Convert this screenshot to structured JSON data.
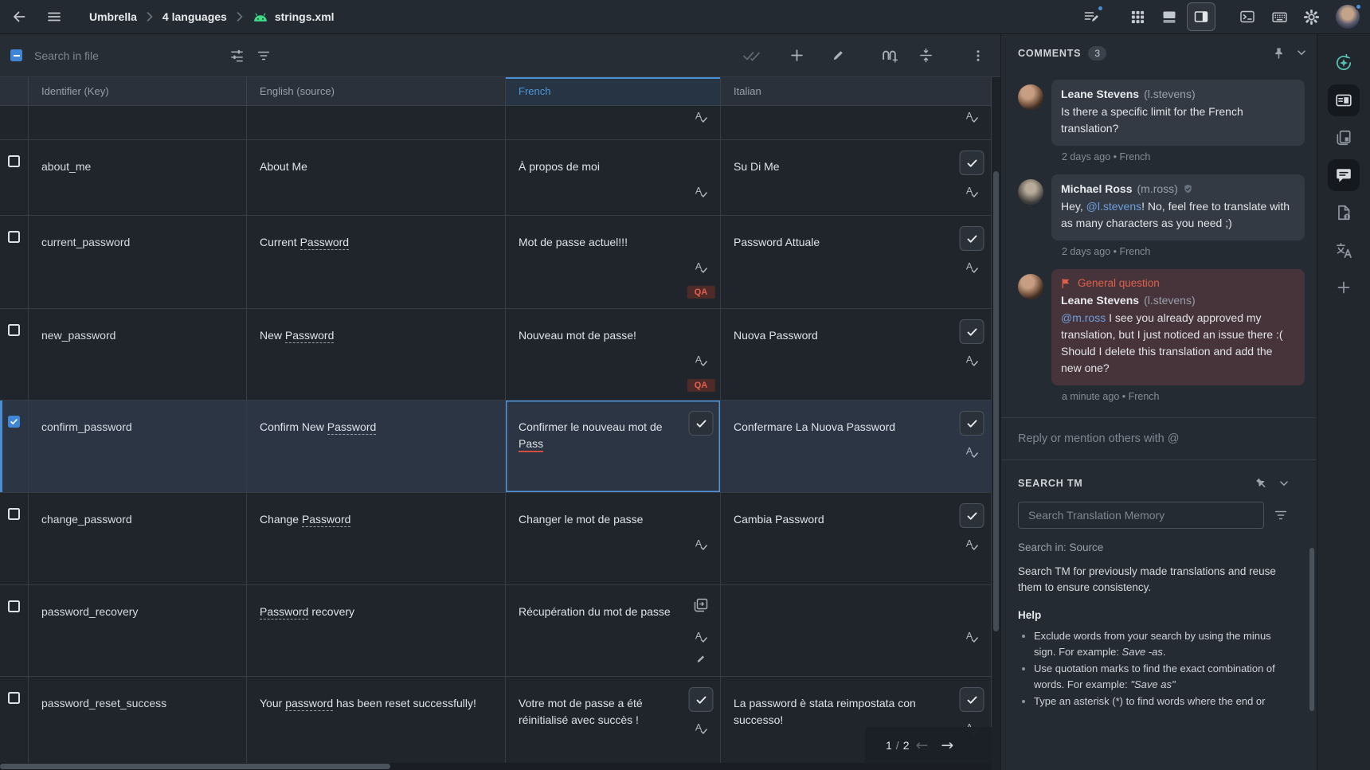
{
  "top_bar": {
    "breadcrumb": [
      {
        "label": "Umbrella"
      },
      {
        "label": "4 languages"
      },
      {
        "label": "strings.xml",
        "icon": "android-icon"
      }
    ],
    "icons": [
      "edit-notes",
      "apps-grid",
      "layout-horizontal-split",
      "layout-side-panel",
      "terminal",
      "keyboard",
      "settings",
      "avatar"
    ],
    "active_icon": "layout-side-panel",
    "notification_on": [
      "edit-notes",
      "avatar"
    ]
  },
  "toolbar": {
    "search_placeholder": "Search in file",
    "select_all_state": "indeterminate"
  },
  "grid": {
    "columns": [
      "Identifier (Key)",
      "English (source)",
      "French",
      "Italian"
    ],
    "active_column": "French",
    "qa_badge_label": "QA",
    "rows": [
      {
        "partial": true,
        "key": "",
        "english": [],
        "french": {
          "text": [],
          "icons": [
            "spellcheck"
          ]
        },
        "italian": {
          "text": [],
          "icons": [
            "spellcheck"
          ]
        }
      },
      {
        "key": "about_me",
        "english": [
          {
            "t": "About Me"
          }
        ],
        "french": {
          "text": [
            {
              "t": "À propos de moi"
            }
          ],
          "icons": [
            "spellcheck"
          ]
        },
        "italian": {
          "text": [
            {
              "t": "Su Di Me"
            }
          ],
          "icons": [
            "approve",
            "spellcheck"
          ]
        }
      },
      {
        "key": "current_password",
        "english": [
          {
            "t": "Current "
          },
          {
            "t": "Password",
            "term": true
          }
        ],
        "french": {
          "text": [
            {
              "t": "Mot de passe actuel!!!"
            }
          ],
          "icons": [
            "spellcheck",
            "qa"
          ]
        },
        "italian": {
          "text": [
            {
              "t": "Password Attuale"
            }
          ],
          "icons": [
            "approve",
            "spellcheck"
          ]
        }
      },
      {
        "key": "new_password",
        "english": [
          {
            "t": "New "
          },
          {
            "t": "Password",
            "term": true
          }
        ],
        "french": {
          "text": [
            {
              "t": "Nouveau mot de passe!"
            }
          ],
          "icons": [
            "spellcheck",
            "qa"
          ]
        },
        "italian": {
          "text": [
            {
              "t": "Nuova Password"
            }
          ],
          "icons": [
            "approve",
            "spellcheck"
          ]
        }
      },
      {
        "key": "confirm_password",
        "selected": true,
        "english": [
          {
            "t": "Confirm New "
          },
          {
            "t": "Password",
            "term": true
          }
        ],
        "french": {
          "text": [
            {
              "t": "Confirmer le nouveau mot de "
            },
            {
              "t": "Pass",
              "error": true
            }
          ],
          "icons": [
            "approve"
          ],
          "focused": true
        },
        "italian": {
          "text": [
            {
              "t": "Confermare La Nuova Password"
            }
          ],
          "icons": [
            "approve",
            "spellcheck"
          ]
        }
      },
      {
        "key": "change_password",
        "english": [
          {
            "t": "Change "
          },
          {
            "t": "Password",
            "term": true
          }
        ],
        "french": {
          "text": [
            {
              "t": "Changer le mot de passe"
            }
          ],
          "icons": [
            "spellcheck"
          ]
        },
        "italian": {
          "text": [
            {
              "t": "Cambia Password"
            }
          ],
          "icons": [
            "approve",
            "spellcheck"
          ]
        }
      },
      {
        "key": "password_recovery",
        "english": [
          {
            "t": "Password",
            "term": true
          },
          {
            "t": " recovery"
          }
        ],
        "french": {
          "text": [
            {
              "t": "Récupération du mot de passe"
            }
          ],
          "icons": [
            "copy",
            "spellcheck",
            "edit"
          ]
        },
        "italian": {
          "text": [],
          "icons": [
            "spellcheck"
          ]
        }
      },
      {
        "key": "password_reset_success",
        "english": [
          {
            "t": "Your "
          },
          {
            "t": "password",
            "term": true
          },
          {
            "t": " has been reset successfully!"
          }
        ],
        "french": {
          "text": [
            {
              "t": "Votre mot de passe a été réinitialisé avec succès !"
            }
          ],
          "icons": [
            "approve",
            "spellcheck"
          ]
        },
        "italian": {
          "text": [
            {
              "t": "La password è stata reimpostata con successo!"
            }
          ],
          "icons": [
            "approve",
            "spellcheck"
          ]
        }
      }
    ]
  },
  "pagination": {
    "current": "1",
    "separator": "/",
    "total": "2"
  },
  "comments": {
    "title": "COMMENTS",
    "count": "3",
    "reply_placeholder": "Reply or mention others with @",
    "items": [
      {
        "author": "Leane Stevens",
        "handle": "(l.stevens)",
        "avatar": "woman-curly-hair",
        "body": [
          {
            "t": "Is there a specific limit for the French translation?"
          }
        ],
        "meta": "2 days ago • French"
      },
      {
        "author": "Michael Ross",
        "handle": "(m.ross)",
        "verified": true,
        "avatar": "man-glasses",
        "body": [
          {
            "t": "Hey, "
          },
          {
            "t": "@l.stevens",
            "mention": true
          },
          {
            "t": "! No, feel free to translate with as many characters as you need ;)"
          }
        ],
        "meta": "2 days ago • French"
      },
      {
        "author": "Leane Stevens",
        "handle": "(l.stevens)",
        "avatar": "woman-curly-hair",
        "flag": "General question",
        "body": [
          {
            "t": "@m.ross",
            "mention": true
          },
          {
            "t": " I see you already approved my translation, but I just noticed an issue there :( Should I delete this translation and add the new one?"
          }
        ],
        "meta": "a minute ago • French"
      }
    ]
  },
  "search_tm": {
    "title": "SEARCH TM",
    "input_placeholder": "Search Translation Memory",
    "scope": "Search in: Source",
    "description": "Search TM for previously made translations and reuse them to ensure consistency.",
    "help_title": "Help",
    "bullets": [
      [
        {
          "t": "Exclude words from your search by using the minus sign. For example: "
        },
        {
          "t": "Save -as",
          "i": true
        },
        {
          "t": "."
        }
      ],
      [
        {
          "t": "Use quotation marks to find the exact combination of words. For example: "
        },
        {
          "t": "\"Save as\"",
          "i": true
        }
      ],
      [
        {
          "t": "Type an asterisk (*) to find words where the end or"
        }
      ]
    ]
  },
  "right_sidebar": {
    "items": [
      "ai-assistant",
      "preview-panel",
      "pages",
      "comments",
      "file-info",
      "translate",
      "add-panel"
    ],
    "active_items": [
      "preview-panel",
      "comments"
    ]
  },
  "colors": {
    "accent_blue": "#4a8fd6",
    "error_red": "#e0604d",
    "android_green": "#3ddc84",
    "ai_teal": "#58c3b2"
  }
}
